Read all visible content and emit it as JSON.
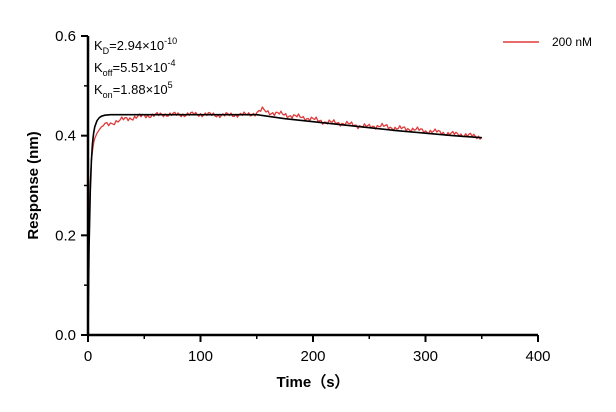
{
  "chart_data": {
    "type": "line",
    "xlabel": "Time（s）",
    "ylabel": "Response (nm)",
    "xlim": [
      0,
      400
    ],
    "ylim": [
      0,
      0.6
    ],
    "x_ticks": [
      "0",
      "100",
      "200",
      "300",
      "400"
    ],
    "y_ticks": [
      "0.0",
      "0.2",
      "0.4",
      "0.6"
    ],
    "grid": false,
    "legend_position": "top-right",
    "annotations": [
      {
        "base": "K",
        "sub": "D",
        "value": "=2.94×10",
        "exp": "-10"
      },
      {
        "base": "K",
        "sub": "off",
        "value": "=5.51×10",
        "exp": "-4"
      },
      {
        "base": "K",
        "sub": "on",
        "value": "=1.88×10",
        "exp": "5"
      }
    ],
    "series": [
      {
        "name": "200 nM",
        "color": "#e03a3a",
        "x": [
          0,
          1,
          2,
          3,
          4,
          5,
          6,
          8,
          10,
          12,
          15,
          20,
          25,
          30,
          40,
          50,
          60,
          70,
          80,
          90,
          100,
          110,
          120,
          130,
          140,
          150,
          152,
          155,
          160,
          170,
          180,
          190,
          200,
          210,
          220,
          230,
          240,
          250,
          260,
          270,
          280,
          290,
          300,
          310,
          320,
          330,
          340,
          350
        ],
        "values": [
          0.0,
          0.22,
          0.31,
          0.35,
          0.37,
          0.385,
          0.395,
          0.405,
          0.412,
          0.418,
          0.422,
          0.425,
          0.428,
          0.432,
          0.436,
          0.44,
          0.441,
          0.443,
          0.442,
          0.443,
          0.443,
          0.442,
          0.441,
          0.442,
          0.442,
          0.445,
          0.448,
          0.452,
          0.447,
          0.444,
          0.44,
          0.437,
          0.433,
          0.428,
          0.426,
          0.424,
          0.42,
          0.418,
          0.42,
          0.416,
          0.414,
          0.413,
          0.409,
          0.408,
          0.404,
          0.403,
          0.4,
          0.397
        ]
      },
      {
        "name": "",
        "color": "#000000",
        "x": [
          0,
          1,
          2,
          3,
          4,
          5,
          6,
          8,
          10,
          12,
          15,
          20,
          30,
          40,
          60,
          80,
          100,
          120,
          140,
          150,
          175,
          200,
          225,
          250,
          275,
          300,
          325,
          350
        ],
        "values": [
          0.0,
          0.18,
          0.29,
          0.35,
          0.385,
          0.405,
          0.418,
          0.43,
          0.436,
          0.439,
          0.441,
          0.442,
          0.442,
          0.442,
          0.442,
          0.442,
          0.442,
          0.442,
          0.442,
          0.442,
          0.434,
          0.428,
          0.422,
          0.416,
          0.41,
          0.405,
          0.4,
          0.396
        ]
      }
    ]
  }
}
